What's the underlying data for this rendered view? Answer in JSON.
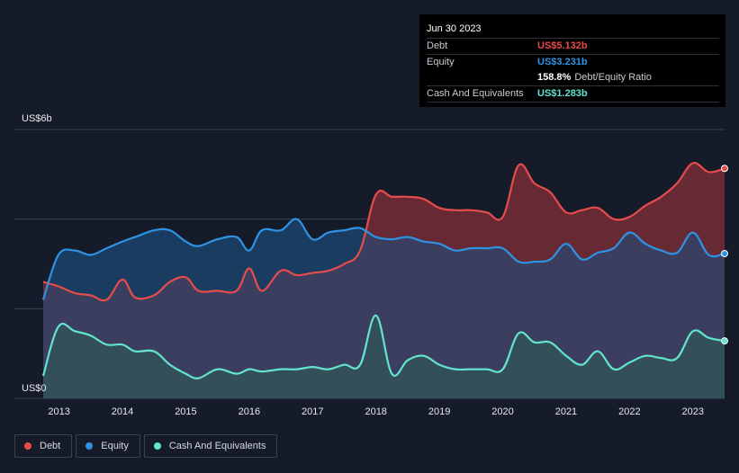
{
  "tooltip": {
    "date": "Jun 30 2023",
    "debt_label": "Debt",
    "debt_value": "US$5.132b",
    "equity_label": "Equity",
    "equity_value": "US$3.231b",
    "ratio_value": "158.8%",
    "ratio_label": "Debt/Equity Ratio",
    "cash_label": "Cash And Equivalents",
    "cash_value": "US$1.283b"
  },
  "legend": {
    "debt": "Debt",
    "equity": "Equity",
    "cash": "Cash And Equivalents"
  },
  "colors": {
    "background": "#151b29",
    "debt": "#e64c4c",
    "equity": "#2e93e5",
    "cash": "#62e4cf",
    "debt_fill": "#6b2a35",
    "equity_fill": "#1a3e63",
    "overlap_fill": "#3b3e5e",
    "cash_fill": "#33505a",
    "grid": "#3a4050"
  },
  "chart_data": {
    "type": "area",
    "title": "",
    "xlabel": "",
    "ylabel": "",
    "y_top_label": "US$6b",
    "y_bottom_label": "US$0",
    "xlim": [
      2012.75,
      2023.5
    ],
    "ylim": [
      0,
      6
    ],
    "y_gridlines": [
      0,
      2,
      4,
      6
    ],
    "x_ticks": [
      2013,
      2014,
      2015,
      2016,
      2017,
      2018,
      2019,
      2020,
      2021,
      2022,
      2023
    ],
    "x_tick_labels": [
      "2013",
      "2014",
      "2015",
      "2016",
      "2017",
      "2018",
      "2019",
      "2020",
      "2021",
      "2022",
      "2023"
    ],
    "series": [
      {
        "name": "Debt",
        "x": [
          2012.75,
          2012.99,
          2013.25,
          2013.5,
          2013.75,
          2014.0,
          2014.2,
          2014.5,
          2014.75,
          2015.0,
          2015.2,
          2015.5,
          2015.8,
          2016.0,
          2016.2,
          2016.5,
          2016.75,
          2017.0,
          2017.25,
          2017.5,
          2017.75,
          2018.0,
          2018.25,
          2018.5,
          2018.75,
          2019.0,
          2019.25,
          2019.5,
          2019.75,
          2020.0,
          2020.25,
          2020.5,
          2020.75,
          2021.0,
          2021.25,
          2021.5,
          2021.75,
          2022.0,
          2022.25,
          2022.5,
          2022.75,
          2023.0,
          2023.25,
          2023.5
        ],
        "values": [
          2.6,
          2.5,
          2.35,
          2.3,
          2.2,
          2.65,
          2.25,
          2.3,
          2.6,
          2.7,
          2.4,
          2.4,
          2.4,
          2.9,
          2.4,
          2.85,
          2.75,
          2.8,
          2.85,
          3.0,
          3.3,
          4.55,
          4.5,
          4.5,
          4.45,
          4.25,
          4.2,
          4.2,
          4.15,
          4.05,
          5.2,
          4.8,
          4.6,
          4.15,
          4.2,
          4.25,
          4.0,
          4.05,
          4.3,
          4.5,
          4.8,
          5.25,
          5.05,
          5.132
        ]
      },
      {
        "name": "Equity",
        "x": [
          2012.75,
          2012.99,
          2013.25,
          2013.5,
          2013.75,
          2014.0,
          2014.2,
          2014.5,
          2014.75,
          2015.0,
          2015.2,
          2015.5,
          2015.8,
          2016.0,
          2016.2,
          2016.5,
          2016.75,
          2017.0,
          2017.25,
          2017.5,
          2017.75,
          2018.0,
          2018.25,
          2018.5,
          2018.75,
          2019.0,
          2019.25,
          2019.5,
          2019.75,
          2020.0,
          2020.25,
          2020.5,
          2020.75,
          2021.0,
          2021.25,
          2021.5,
          2021.75,
          2022.0,
          2022.25,
          2022.5,
          2022.75,
          2023.0,
          2023.25,
          2023.5
        ],
        "values": [
          2.2,
          3.2,
          3.3,
          3.2,
          3.35,
          3.5,
          3.6,
          3.75,
          3.75,
          3.5,
          3.4,
          3.55,
          3.6,
          3.3,
          3.75,
          3.75,
          4.0,
          3.55,
          3.7,
          3.75,
          3.8,
          3.6,
          3.55,
          3.6,
          3.5,
          3.45,
          3.3,
          3.35,
          3.35,
          3.35,
          3.05,
          3.05,
          3.1,
          3.45,
          3.1,
          3.25,
          3.35,
          3.7,
          3.45,
          3.3,
          3.25,
          3.7,
          3.2,
          3.231
        ]
      },
      {
        "name": "Cash And Equivalents",
        "x": [
          2012.75,
          2012.99,
          2013.25,
          2013.5,
          2013.75,
          2014.0,
          2014.2,
          2014.5,
          2014.75,
          2015.0,
          2015.2,
          2015.5,
          2015.8,
          2016.0,
          2016.2,
          2016.5,
          2016.75,
          2017.0,
          2017.25,
          2017.5,
          2017.75,
          2018.0,
          2018.25,
          2018.5,
          2018.75,
          2019.0,
          2019.25,
          2019.5,
          2019.75,
          2020.0,
          2020.25,
          2020.5,
          2020.75,
          2021.0,
          2021.25,
          2021.5,
          2021.75,
          2022.0,
          2022.25,
          2022.5,
          2022.75,
          2023.0,
          2023.25,
          2023.5
        ],
        "values": [
          0.5,
          1.6,
          1.5,
          1.4,
          1.2,
          1.2,
          1.05,
          1.05,
          0.75,
          0.55,
          0.45,
          0.65,
          0.55,
          0.65,
          0.6,
          0.65,
          0.65,
          0.7,
          0.65,
          0.75,
          0.75,
          1.85,
          0.55,
          0.85,
          0.95,
          0.75,
          0.65,
          0.65,
          0.65,
          0.65,
          1.45,
          1.25,
          1.25,
          0.95,
          0.75,
          1.05,
          0.65,
          0.8,
          0.95,
          0.9,
          0.9,
          1.5,
          1.35,
          1.283
        ]
      }
    ]
  }
}
